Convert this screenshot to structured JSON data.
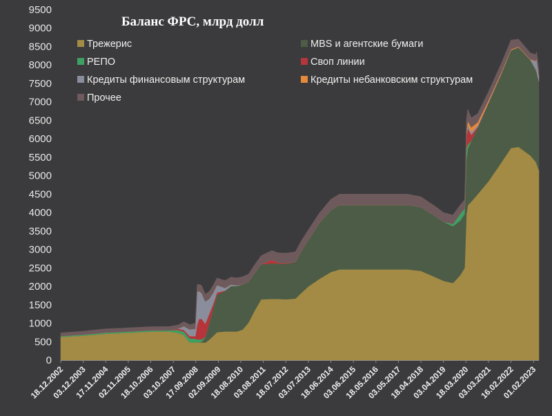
{
  "chart_data": {
    "type": "area",
    "title": "Баланс ФРС, млрд долл",
    "stacked": true,
    "ylim": [
      0,
      9500
    ],
    "yticks": [
      0,
      500,
      1000,
      1500,
      2000,
      2500,
      3000,
      3500,
      4000,
      4500,
      5000,
      5500,
      6000,
      6500,
      7000,
      7500,
      8000,
      8500,
      9000,
      9500
    ],
    "xlim": [
      "2002-12-18",
      "2023-04-26"
    ],
    "xticks": [
      {
        "date": "2002-12-18",
        "label": "18.12.2002"
      },
      {
        "date": "2003-12-03",
        "label": "03.12.2003"
      },
      {
        "date": "2004-11-17",
        "label": "17.11.2004"
      },
      {
        "date": "2005-11-02",
        "label": "02.11.2005"
      },
      {
        "date": "2006-10-18",
        "label": "18.10.2006"
      },
      {
        "date": "2007-10-03",
        "label": "03.10.2007"
      },
      {
        "date": "2008-09-17",
        "label": "17.09.2008"
      },
      {
        "date": "2009-09-02",
        "label": "02.09.2009"
      },
      {
        "date": "2010-08-18",
        "label": "18.08.2010"
      },
      {
        "date": "2011-08-03",
        "label": "03.08.2011"
      },
      {
        "date": "2012-07-18",
        "label": "18.07.2012"
      },
      {
        "date": "2013-07-03",
        "label": "03.07.2013"
      },
      {
        "date": "2014-06-18",
        "label": "18.06.2014"
      },
      {
        "date": "2015-06-03",
        "label": "03.06.2015"
      },
      {
        "date": "2016-05-18",
        "label": "18.05.2016"
      },
      {
        "date": "2017-05-03",
        "label": "03.05.2017"
      },
      {
        "date": "2018-04-18",
        "label": "18.04.2018"
      },
      {
        "date": "2019-04-03",
        "label": "03.04.2019"
      },
      {
        "date": "2020-03-18",
        "label": "18.03.2020"
      },
      {
        "date": "2021-03-03",
        "label": "03.03.2021"
      },
      {
        "date": "2022-02-16",
        "label": "16.02.2022"
      },
      {
        "date": "2023-02-01",
        "label": "01.02.2023"
      }
    ],
    "legend_placement": "top",
    "grid": false,
    "x": [
      "2002-12-18",
      "2003-12-03",
      "2004-11-17",
      "2005-11-02",
      "2006-10-18",
      "2007-08-01",
      "2007-12-15",
      "2008-03-15",
      "2008-06-15",
      "2008-09-10",
      "2008-10-08",
      "2008-11-05",
      "2008-12-17",
      "2009-02-11",
      "2009-04-15",
      "2009-06-17",
      "2009-08-12",
      "2009-12-16",
      "2010-03-17",
      "2010-06-16",
      "2010-09-15",
      "2010-12-15",
      "2011-03-16",
      "2011-06-29",
      "2011-12-14",
      "2012-03-14",
      "2012-07-18",
      "2012-12-12",
      "2013-03-13",
      "2013-07-03",
      "2013-12-18",
      "2014-06-18",
      "2014-10-29",
      "2015-06-03",
      "2016-05-18",
      "2017-05-03",
      "2017-09-27",
      "2018-04-18",
      "2018-12-12",
      "2019-04-03",
      "2019-08-28",
      "2019-12-18",
      "2020-02-26",
      "2020-03-11",
      "2020-03-25",
      "2020-04-15",
      "2020-06-10",
      "2020-09-16",
      "2021-03-03",
      "2021-09-15",
      "2022-02-16",
      "2022-06-15",
      "2022-12-14",
      "2023-03-08",
      "2023-03-22",
      "2023-04-26"
    ],
    "series": [
      {
        "name": "Трежерис",
        "color": "#a38a45",
        "values": [
          630,
          666,
          717,
          745,
          775,
          780,
          740,
          680,
          480,
          480,
          480,
          480,
          480,
          475,
          560,
          660,
          760,
          777,
          777,
          777,
          830,
          1020,
          1330,
          1650,
          1660,
          1660,
          1650,
          1670,
          1820,
          2000,
          2200,
          2390,
          2460,
          2460,
          2460,
          2460,
          2460,
          2420,
          2240,
          2150,
          2090,
          2300,
          2500,
          3200,
          3950,
          4200,
          4300,
          4500,
          4850,
          5350,
          5750,
          5780,
          5550,
          5380,
          5330,
          5150
        ]
      },
      {
        "name": "MBS и агентские бумаги",
        "color": "#4c5c46",
        "values": [
          0,
          0,
          0,
          0,
          0,
          0,
          0,
          0,
          0,
          0,
          0,
          5,
          20,
          140,
          450,
          750,
          1010,
          1100,
          1230,
          1230,
          1230,
          1100,
          1020,
          950,
          960,
          960,
          960,
          990,
          1130,
          1260,
          1510,
          1680,
          1750,
          1750,
          1750,
          1750,
          1750,
          1730,
          1650,
          1600,
          1540,
          1480,
          1460,
          1460,
          1470,
          1520,
          1650,
          1800,
          2120,
          2400,
          2650,
          2700,
          2590,
          2500,
          2490,
          2400
        ]
      },
      {
        "name": "РЕПО",
        "color": "#3fa064",
        "values": [
          20,
          25,
          30,
          30,
          30,
          30,
          80,
          90,
          110,
          100,
          80,
          80,
          60,
          15,
          10,
          5,
          0,
          0,
          0,
          0,
          0,
          0,
          0,
          0,
          0,
          0,
          0,
          0,
          0,
          0,
          0,
          0,
          0,
          0,
          0,
          0,
          0,
          0,
          0,
          0,
          60,
          180,
          150,
          200,
          320,
          120,
          10,
          0,
          0,
          0,
          0,
          0,
          0,
          0,
          0,
          0
        ]
      },
      {
        "name": "Своп линии",
        "color": "#b5353a",
        "values": [
          0,
          0,
          0,
          0,
          0,
          0,
          30,
          50,
          60,
          70,
          400,
          550,
          560,
          360,
          240,
          120,
          60,
          10,
          0,
          0,
          0,
          0,
          0,
          0,
          100,
          30,
          20,
          5,
          0,
          0,
          0,
          0,
          0,
          0,
          0,
          0,
          0,
          0,
          0,
          0,
          0,
          0,
          0,
          0,
          350,
          450,
          150,
          20,
          5,
          0,
          0,
          0,
          0,
          0,
          0,
          0
        ]
      },
      {
        "name": "Кредиты финансовым структурам",
        "color": "#8a8e9c",
        "values": [
          0,
          0,
          0,
          0,
          0,
          0,
          0,
          100,
          180,
          200,
          900,
          750,
          700,
          600,
          400,
          300,
          200,
          70,
          40,
          20,
          0,
          0,
          0,
          0,
          0,
          0,
          0,
          0,
          0,
          0,
          0,
          0,
          0,
          0,
          0,
          0,
          0,
          0,
          0,
          0,
          0,
          0,
          0,
          0,
          60,
          90,
          70,
          40,
          20,
          10,
          5,
          5,
          5,
          220,
          360,
          150
        ]
      },
      {
        "name": "Кредиты небанковским структурам",
        "color": "#e58a3a",
        "values": [
          0,
          0,
          0,
          0,
          0,
          0,
          0,
          0,
          0,
          0,
          0,
          0,
          0,
          0,
          0,
          0,
          0,
          0,
          0,
          0,
          0,
          0,
          0,
          0,
          0,
          0,
          0,
          0,
          0,
          0,
          0,
          0,
          0,
          0,
          0,
          0,
          0,
          0,
          0,
          0,
          0,
          0,
          0,
          0,
          40,
          100,
          130,
          90,
          50,
          30,
          20,
          15,
          10,
          10,
          10,
          10
        ]
      },
      {
        "name": "Прочее",
        "color": "#6e5a5c",
        "values": [
          90,
          95,
          100,
          100,
          100,
          100,
          100,
          120,
          130,
          150,
          180,
          190,
          200,
          195,
          200,
          200,
          195,
          200,
          205,
          200,
          200,
          210,
          220,
          230,
          250,
          260,
          270,
          270,
          280,
          270,
          270,
          290,
          290,
          290,
          290,
          290,
          290,
          280,
          260,
          250,
          240,
          240,
          240,
          250,
          320,
          320,
          260,
          230,
          230,
          240,
          250,
          200,
          170,
          170,
          170,
          160
        ]
      }
    ]
  }
}
